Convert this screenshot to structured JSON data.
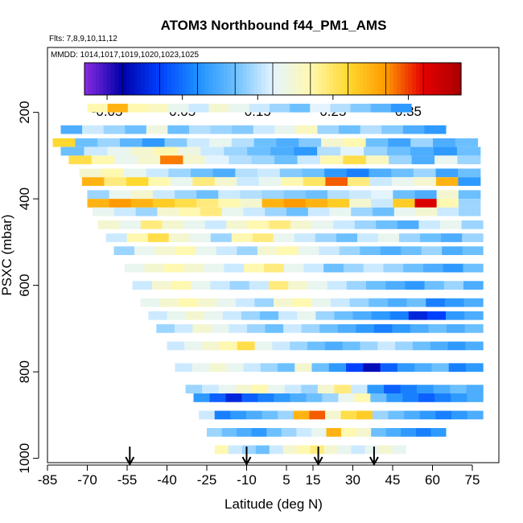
{
  "chart_data": {
    "type": "heatmap",
    "title": "ATOM3 Northbound f44_PM1_AMS",
    "subtitle_flights": "Flts: 7,8,9,10,11,12",
    "subtitle_dates": "MMDD: 1014,1017,1019,1020,1023,1025",
    "xlabel": "Latitude (deg N)",
    "ylabel": "PSXC (mbar)",
    "xlim": [
      -85,
      85
    ],
    "ylim": [
      1010,
      50
    ],
    "x_ticks": [
      -85,
      -70,
      -55,
      -40,
      -25,
      -10,
      5,
      15,
      30,
      45,
      60,
      75
    ],
    "x_tick_labels": [
      "-85",
      "-70",
      "-55",
      "-40",
      "-25",
      "-10",
      "5",
      "15",
      "30",
      "45",
      "60",
      "75"
    ],
    "y_ticks": [
      200,
      400,
      600,
      800,
      1000
    ],
    "y_tick_labels": [
      "200",
      "400",
      "600",
      "800",
      "1000"
    ],
    "colorbar": {
      "range": [
        -0.08,
        0.42
      ],
      "ticks": [
        -0.05,
        0.05,
        0.15,
        0.25,
        0.35
      ],
      "tick_labels": [
        "-0.05",
        "0.05",
        "0.15",
        "0.25",
        "0.35"
      ],
      "colors": [
        "#8a2be2",
        "#0000a8",
        "#0040ff",
        "#1e90ff",
        "#6cc0ff",
        "#e4f4ff",
        "#fff8b0",
        "#ffd830",
        "#ff9a00",
        "#e60000",
        "#a80000"
      ]
    },
    "arrows_latitude": [
      -54,
      -10,
      17,
      38
    ],
    "level_width_mbar": 20,
    "levels": [
      {
        "p": 190,
        "lat": [
          -70,
          52
        ],
        "vals": [
          0.22,
          0.3,
          0.22,
          0.21,
          0.18,
          0.16,
          0.2,
          0.18,
          0.16,
          0.14,
          0.12,
          0.17,
          0.15,
          0.13,
          0.11,
          0.08
        ]
      },
      {
        "p": 240,
        "lat": [
          -80,
          65
        ],
        "vals": [
          0.1,
          0.16,
          0.14,
          0.12,
          0.19,
          0.12,
          0.15,
          0.14,
          0.13,
          0.16,
          0.18,
          0.21,
          0.14,
          0.12,
          0.15,
          0.13,
          0.1,
          0.08
        ]
      },
      {
        "p": 270,
        "lat": [
          -83,
          77
        ],
        "vals": [
          0.27,
          0.12,
          0.14,
          0.11,
          0.08,
          0.13,
          0.16,
          0.18,
          0.15,
          0.12,
          0.1,
          0.13,
          0.2,
          0.22,
          0.12,
          0.09,
          0.14,
          0.1,
          0.12
        ]
      },
      {
        "p": 290,
        "lat": [
          -80,
          78
        ],
        "vals": [
          0.12,
          0.16,
          0.18,
          0.2,
          0.22,
          0.19,
          0.16,
          0.14,
          0.12,
          0.1,
          0.08,
          0.15,
          0.17,
          0.14,
          0.12,
          0.1,
          0.08,
          0.12
        ]
      },
      {
        "p": 310,
        "lat": [
          -77,
          78
        ],
        "vals": [
          0.26,
          0.22,
          0.18,
          0.2,
          0.33,
          0.2,
          0.17,
          0.15,
          0.14,
          0.12,
          0.16,
          0.22,
          0.26,
          0.21,
          0.14,
          0.1,
          0.18,
          0.14
        ]
      },
      {
        "p": 340,
        "lat": [
          -73,
          78
        ],
        "vals": [
          0.2,
          0.22,
          0.18,
          0.16,
          0.14,
          0.12,
          0.1,
          0.15,
          0.16,
          0.13,
          0.12,
          0.08,
          0.06,
          0.1,
          0.12,
          0.14,
          0.09,
          0.12
        ]
      },
      {
        "p": 360,
        "lat": [
          -72,
          78
        ],
        "vals": [
          0.3,
          0.24,
          0.27,
          0.22,
          0.18,
          0.24,
          0.2,
          0.16,
          0.18,
          0.22,
          0.25,
          0.34,
          0.24,
          0.16,
          0.18,
          0.2,
          0.3,
          0.08
        ]
      },
      {
        "p": 390,
        "lat": [
          -70,
          78
        ],
        "vals": [
          0.14,
          0.18,
          0.2,
          0.16,
          0.14,
          0.12,
          0.16,
          0.15,
          0.14,
          0.13,
          0.12,
          0.15,
          0.16,
          0.17,
          0.12,
          0.1,
          0.2,
          0.12
        ]
      },
      {
        "p": 410,
        "lat": [
          -70,
          78
        ],
        "vals": [
          0.3,
          0.32,
          0.3,
          0.28,
          0.26,
          0.24,
          0.22,
          0.2,
          0.3,
          0.32,
          0.3,
          0.28,
          0.2,
          0.16,
          0.28,
          0.38,
          0.22,
          0.14
        ]
      },
      {
        "p": 430,
        "lat": [
          -68,
          78
        ],
        "vals": [
          0.18,
          0.16,
          0.14,
          0.2,
          0.22,
          0.24,
          0.18,
          0.16,
          0.14,
          0.12,
          0.16,
          0.18,
          0.14,
          0.12,
          0.18,
          0.2,
          0.16,
          0.14
        ]
      },
      {
        "p": 460,
        "lat": [
          -66,
          79
        ],
        "vals": [
          0.2,
          0.18,
          0.24,
          0.2,
          0.18,
          0.16,
          0.2,
          0.22,
          0.24,
          0.2,
          0.18,
          0.16,
          0.14,
          0.12,
          0.1,
          0.16,
          0.18,
          0.14
        ]
      },
      {
        "p": 490,
        "lat": [
          -63,
          79
        ],
        "vals": [
          0.16,
          0.22,
          0.26,
          0.2,
          0.18,
          0.14,
          0.22,
          0.24,
          0.18,
          0.16,
          0.14,
          0.12,
          0.16,
          0.18,
          0.14,
          0.12,
          0.1,
          0.14
        ]
      },
      {
        "p": 520,
        "lat": [
          -60,
          79
        ],
        "vals": [
          0.14,
          0.18,
          0.2,
          0.22,
          0.18,
          0.16,
          0.14,
          0.2,
          0.22,
          0.18,
          0.16,
          0.14,
          0.12,
          0.1,
          0.12,
          0.14,
          0.1,
          0.12
        ]
      },
      {
        "p": 560,
        "lat": [
          -56,
          79
        ],
        "vals": [
          0.18,
          0.2,
          0.22,
          0.2,
          0.18,
          0.16,
          0.22,
          0.24,
          0.18,
          0.16,
          0.12,
          0.14,
          0.16,
          0.14,
          0.12,
          0.1,
          0.08,
          0.12
        ]
      },
      {
        "p": 600,
        "lat": [
          -53,
          79
        ],
        "vals": [
          0.16,
          0.2,
          0.22,
          0.18,
          0.16,
          0.14,
          0.16,
          0.24,
          0.2,
          0.18,
          0.16,
          0.14,
          0.12,
          0.1,
          0.08,
          0.12,
          0.14,
          0.1
        ]
      },
      {
        "p": 640,
        "lat": [
          -50,
          79
        ],
        "vals": [
          0.18,
          0.2,
          0.22,
          0.2,
          0.18,
          0.16,
          0.14,
          0.2,
          0.22,
          0.18,
          0.16,
          0.14,
          0.12,
          0.1,
          0.12,
          0.06,
          0.08,
          0.1
        ]
      },
      {
        "p": 670,
        "lat": [
          -47,
          79
        ],
        "vals": [
          0.16,
          0.18,
          0.2,
          0.18,
          0.16,
          0.14,
          0.12,
          0.16,
          0.18,
          0.14,
          0.12,
          0.1,
          0.08,
          0.06,
          0.0,
          0.02,
          0.08,
          0.1
        ]
      },
      {
        "p": 700,
        "lat": [
          -44,
          79
        ],
        "vals": [
          0.14,
          0.16,
          0.2,
          0.18,
          0.16,
          0.14,
          0.12,
          0.16,
          0.14,
          0.12,
          0.1,
          0.08,
          0.06,
          0.08,
          0.1,
          0.12,
          0.1,
          0.12
        ]
      },
      {
        "p": 740,
        "lat": [
          -40,
          79
        ],
        "vals": [
          0.16,
          0.18,
          0.2,
          0.22,
          0.26,
          0.18,
          0.16,
          0.14,
          0.12,
          0.1,
          0.12,
          0.14,
          0.16,
          0.14,
          0.12,
          0.1,
          0.08,
          0.1
        ]
      },
      {
        "p": 790,
        "lat": [
          -37,
          79
        ],
        "vals": [
          0.16,
          0.18,
          0.2,
          0.18,
          0.16,
          0.14,
          0.12,
          0.2,
          0.12,
          0.08,
          0.02,
          -0.02,
          0.04,
          0.08,
          0.1,
          0.12,
          0.06,
          0.08
        ]
      },
      {
        "p": 840,
        "lat": [
          -33,
          79
        ],
        "vals": [
          0.14,
          0.16,
          0.18,
          0.2,
          0.22,
          0.18,
          0.16,
          0.14,
          0.2,
          0.24,
          0.16,
          0.08,
          0.04,
          0.06,
          0.08,
          0.1,
          0.12,
          0.1
        ]
      },
      {
        "p": 860,
        "lat": [
          -30,
          79
        ],
        "vals": [
          0.08,
          0.04,
          0.0,
          0.04,
          0.06,
          0.08,
          0.1,
          0.12,
          0.14,
          0.18,
          0.22,
          0.12,
          0.08,
          0.06,
          0.04,
          0.06,
          0.08,
          0.1
        ]
      },
      {
        "p": 900,
        "lat": [
          -28,
          79
        ],
        "vals": [
          0.16,
          0.06,
          0.08,
          0.1,
          0.12,
          0.14,
          0.3,
          0.34,
          0.2,
          0.26,
          0.28,
          0.14,
          0.12,
          0.1,
          0.08,
          0.06,
          0.08,
          0.1
        ]
      },
      {
        "p": 940,
        "lat": [
          -25,
          65
        ],
        "vals": [
          0.14,
          0.12,
          0.1,
          0.08,
          0.12,
          0.14,
          0.16,
          0.18,
          0.3,
          0.22,
          0.2,
          0.12,
          0.1,
          0.08,
          0.06,
          0.08
        ]
      },
      {
        "p": 980,
        "lat": [
          -22,
          50
        ],
        "vals": [
          0.22,
          0.16,
          0.14,
          0.12,
          0.16,
          0.2,
          0.22,
          0.24,
          0.2,
          0.18,
          0.16,
          0.18,
          0.2,
          0.18
        ]
      }
    ]
  }
}
